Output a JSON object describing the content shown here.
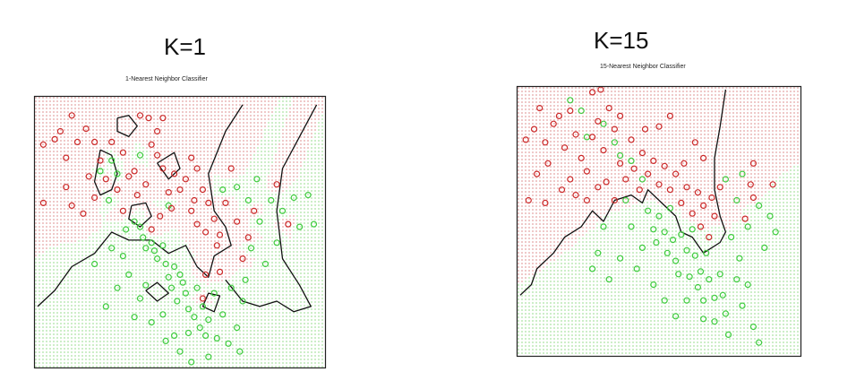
{
  "panels": [
    {
      "heading": "K=1",
      "subtitle": "1-Nearest Neighbor Classifier"
    },
    {
      "heading": "K=15",
      "subtitle": "15-Nearest Neighbor Classifier"
    }
  ],
  "colors": {
    "class_red": "#cc2a2a",
    "class_green": "#3ecc3e",
    "region_red": "#f4dcdc",
    "region_green": "#e6f6e2",
    "boundary": "#111111",
    "frame": "#222222"
  },
  "chart_data": [
    {
      "type": "scatter",
      "title": "1-Nearest Neighbor Classifier",
      "xlabel": "",
      "ylabel": "",
      "xlim": [
        0,
        1
      ],
      "ylim": [
        0,
        1
      ],
      "classes": [
        "red",
        "green"
      ],
      "red": [
        [
          0.02,
          0.83
        ],
        [
          0.06,
          0.85
        ],
        [
          0.08,
          0.88
        ],
        [
          0.1,
          0.78
        ],
        [
          0.14,
          0.84
        ],
        [
          0.12,
          0.94
        ],
        [
          0.17,
          0.89
        ],
        [
          0.2,
          0.84
        ],
        [
          0.22,
          0.77
        ],
        [
          0.24,
          0.7
        ],
        [
          0.02,
          0.61
        ],
        [
          0.1,
          0.67
        ],
        [
          0.18,
          0.71
        ],
        [
          0.2,
          0.63
        ],
        [
          0.26,
          0.84
        ],
        [
          0.3,
          0.8
        ],
        [
          0.32,
          0.71
        ],
        [
          0.34,
          0.73
        ],
        [
          0.35,
          0.64
        ],
        [
          0.36,
          0.94
        ],
        [
          0.39,
          0.93
        ],
        [
          0.4,
          0.83
        ],
        [
          0.42,
          0.88
        ],
        [
          0.44,
          0.74
        ],
        [
          0.46,
          0.65
        ],
        [
          0.47,
          0.59
        ],
        [
          0.48,
          0.72
        ],
        [
          0.5,
          0.66
        ],
        [
          0.52,
          0.7
        ],
        [
          0.54,
          0.78
        ],
        [
          0.54,
          0.58
        ],
        [
          0.55,
          0.62
        ],
        [
          0.56,
          0.74
        ],
        [
          0.56,
          0.53
        ],
        [
          0.58,
          0.66
        ],
        [
          0.59,
          0.5
        ],
        [
          0.6,
          0.61
        ],
        [
          0.62,
          0.55
        ],
        [
          0.63,
          0.45
        ],
        [
          0.64,
          0.49
        ],
        [
          0.66,
          0.61
        ],
        [
          0.68,
          0.74
        ],
        [
          0.7,
          0.54
        ],
        [
          0.72,
          0.4
        ],
        [
          0.74,
          0.48
        ],
        [
          0.76,
          0.58
        ],
        [
          0.84,
          0.68
        ],
        [
          0.88,
          0.53
        ],
        [
          0.4,
          0.51
        ],
        [
          0.43,
          0.56
        ],
        [
          0.28,
          0.66
        ],
        [
          0.3,
          0.58
        ],
        [
          0.38,
          0.68
        ],
        [
          0.42,
          0.79
        ],
        [
          0.16,
          0.57
        ],
        [
          0.44,
          0.93
        ],
        [
          0.12,
          0.6
        ],
        [
          0.59,
          0.34
        ],
        [
          0.64,
          0.35
        ],
        [
          0.58,
          0.25
        ]
      ],
      "green": [
        [
          0.22,
          0.73
        ],
        [
          0.26,
          0.77
        ],
        [
          0.28,
          0.72
        ],
        [
          0.34,
          0.54
        ],
        [
          0.36,
          0.52
        ],
        [
          0.37,
          0.48
        ],
        [
          0.38,
          0.44
        ],
        [
          0.4,
          0.46
        ],
        [
          0.41,
          0.43
        ],
        [
          0.42,
          0.4
        ],
        [
          0.44,
          0.45
        ],
        [
          0.45,
          0.38
        ],
        [
          0.46,
          0.33
        ],
        [
          0.47,
          0.29
        ],
        [
          0.48,
          0.37
        ],
        [
          0.49,
          0.24
        ],
        [
          0.5,
          0.34
        ],
        [
          0.51,
          0.31
        ],
        [
          0.52,
          0.27
        ],
        [
          0.53,
          0.21
        ],
        [
          0.55,
          0.18
        ],
        [
          0.56,
          0.29
        ],
        [
          0.57,
          0.14
        ],
        [
          0.58,
          0.22
        ],
        [
          0.59,
          0.11
        ],
        [
          0.6,
          0.17
        ],
        [
          0.62,
          0.27
        ],
        [
          0.63,
          0.1
        ],
        [
          0.65,
          0.19
        ],
        [
          0.67,
          0.08
        ],
        [
          0.68,
          0.29
        ],
        [
          0.7,
          0.14
        ],
        [
          0.71,
          0.05
        ],
        [
          0.72,
          0.24
        ],
        [
          0.73,
          0.32
        ],
        [
          0.74,
          0.62
        ],
        [
          0.75,
          0.44
        ],
        [
          0.77,
          0.7
        ],
        [
          0.78,
          0.54
        ],
        [
          0.8,
          0.38
        ],
        [
          0.82,
          0.62
        ],
        [
          0.84,
          0.46
        ],
        [
          0.86,
          0.58
        ],
        [
          0.9,
          0.63
        ],
        [
          0.92,
          0.52
        ],
        [
          0.95,
          0.64
        ],
        [
          0.97,
          0.53
        ],
        [
          0.26,
          0.44
        ],
        [
          0.3,
          0.41
        ],
        [
          0.32,
          0.34
        ],
        [
          0.28,
          0.29
        ],
        [
          0.24,
          0.22
        ],
        [
          0.36,
          0.25
        ],
        [
          0.4,
          0.16
        ],
        [
          0.44,
          0.19
        ],
        [
          0.48,
          0.11
        ],
        [
          0.5,
          0.05
        ],
        [
          0.54,
          0.01
        ],
        [
          0.38,
          0.3
        ],
        [
          0.34,
          0.18
        ],
        [
          0.2,
          0.38
        ],
        [
          0.46,
          0.6
        ],
        [
          0.36,
          0.79
        ],
        [
          0.25,
          0.62
        ],
        [
          0.31,
          0.51
        ],
        [
          0.65,
          0.66
        ],
        [
          0.7,
          0.67
        ],
        [
          0.6,
          0.03
        ],
        [
          0.45,
          0.09
        ],
        [
          0.53,
          0.12
        ]
      ],
      "boundary_paths": [
        [
          [
            0.0,
            0.22
          ],
          [
            0.06,
            0.28
          ],
          [
            0.12,
            0.37
          ],
          [
            0.2,
            0.42
          ],
          [
            0.26,
            0.5
          ],
          [
            0.32,
            0.47
          ],
          [
            0.4,
            0.47
          ],
          [
            0.46,
            0.42
          ],
          [
            0.52,
            0.45
          ],
          [
            0.56,
            0.37
          ],
          [
            0.6,
            0.33
          ],
          [
            0.62,
            0.41
          ],
          [
            0.68,
            0.45
          ],
          [
            0.66,
            0.52
          ],
          [
            0.62,
            0.58
          ],
          [
            0.6,
            0.72
          ],
          [
            0.66,
            0.88
          ],
          [
            0.72,
            0.98
          ]
        ],
        [
          [
            0.66,
            0.32
          ],
          [
            0.72,
            0.24
          ],
          [
            0.78,
            0.22
          ],
          [
            0.84,
            0.24
          ],
          [
            0.9,
            0.2
          ],
          [
            0.96,
            0.22
          ],
          [
            0.92,
            0.3
          ],
          [
            0.86,
            0.4
          ],
          [
            0.84,
            0.58
          ],
          [
            0.86,
            0.74
          ],
          [
            0.92,
            0.86
          ],
          [
            0.98,
            0.98
          ]
        ],
        [
          [
            0.22,
            0.81
          ],
          [
            0.26,
            0.79
          ],
          [
            0.28,
            0.72
          ],
          [
            0.26,
            0.66
          ],
          [
            0.22,
            0.64
          ],
          [
            0.2,
            0.69
          ],
          [
            0.22,
            0.81
          ]
        ],
        [
          [
            0.28,
            0.93
          ],
          [
            0.32,
            0.94
          ],
          [
            0.35,
            0.9
          ],
          [
            0.32,
            0.86
          ],
          [
            0.28,
            0.88
          ],
          [
            0.28,
            0.93
          ]
        ],
        [
          [
            0.33,
            0.6
          ],
          [
            0.38,
            0.61
          ],
          [
            0.4,
            0.56
          ],
          [
            0.36,
            0.52
          ],
          [
            0.32,
            0.55
          ],
          [
            0.33,
            0.6
          ]
        ],
        [
          [
            0.42,
            0.76
          ],
          [
            0.48,
            0.8
          ],
          [
            0.5,
            0.74
          ],
          [
            0.46,
            0.7
          ],
          [
            0.42,
            0.76
          ]
        ],
        [
          [
            0.38,
            0.28
          ],
          [
            0.42,
            0.31
          ],
          [
            0.46,
            0.27
          ],
          [
            0.42,
            0.24
          ],
          [
            0.38,
            0.28
          ]
        ],
        [
          [
            0.58,
            0.22
          ],
          [
            0.6,
            0.27
          ],
          [
            0.64,
            0.26
          ],
          [
            0.62,
            0.2
          ],
          [
            0.58,
            0.22
          ]
        ]
      ]
    },
    {
      "type": "scatter",
      "title": "15-Nearest Neighbor Classifier",
      "xlabel": "",
      "ylabel": "",
      "xlim": [
        0,
        1
      ],
      "ylim": [
        0,
        1
      ],
      "classes": [
        "red",
        "green"
      ],
      "red": [
        [
          0.02,
          0.81
        ],
        [
          0.05,
          0.85
        ],
        [
          0.07,
          0.93
        ],
        [
          0.09,
          0.8
        ],
        [
          0.12,
          0.87
        ],
        [
          0.14,
          0.9
        ],
        [
          0.16,
          0.78
        ],
        [
          0.18,
          0.92
        ],
        [
          0.2,
          0.83
        ],
        [
          0.22,
          0.74
        ],
        [
          0.24,
          0.69
        ],
        [
          0.26,
          0.82
        ],
        [
          0.28,
          0.88
        ],
        [
          0.3,
          0.77
        ],
        [
          0.32,
          0.93
        ],
        [
          0.34,
          0.85
        ],
        [
          0.36,
          0.72
        ],
        [
          0.38,
          0.66
        ],
        [
          0.4,
          0.81
        ],
        [
          0.41,
          0.7
        ],
        [
          0.43,
          0.62
        ],
        [
          0.44,
          0.76
        ],
        [
          0.46,
          0.68
        ],
        [
          0.48,
          0.73
        ],
        [
          0.5,
          0.64
        ],
        [
          0.52,
          0.71
        ],
        [
          0.54,
          0.62
        ],
        [
          0.56,
          0.68
        ],
        [
          0.58,
          0.57
        ],
        [
          0.59,
          0.72
        ],
        [
          0.6,
          0.63
        ],
        [
          0.62,
          0.53
        ],
        [
          0.64,
          0.61
        ],
        [
          0.65,
          0.48
        ],
        [
          0.66,
          0.56
        ],
        [
          0.68,
          0.44
        ],
        [
          0.7,
          0.52
        ],
        [
          0.72,
          0.63
        ],
        [
          0.63,
          0.8
        ],
        [
          0.66,
          0.74
        ],
        [
          0.69,
          0.59
        ],
        [
          0.06,
          0.68
        ],
        [
          0.1,
          0.72
        ],
        [
          0.15,
          0.62
        ],
        [
          0.18,
          0.66
        ],
        [
          0.2,
          0.6
        ],
        [
          0.24,
          0.58
        ],
        [
          0.28,
          0.63
        ],
        [
          0.31,
          0.65
        ],
        [
          0.34,
          0.58
        ],
        [
          0.09,
          0.57
        ],
        [
          0.03,
          0.58
        ],
        [
          0.26,
          0.99
        ],
        [
          0.29,
          1.0
        ],
        [
          0.45,
          0.85
        ],
        [
          0.84,
          0.72
        ],
        [
          0.83,
          0.64
        ],
        [
          0.84,
          0.59
        ],
        [
          0.81,
          0.51
        ],
        [
          0.91,
          0.64
        ],
        [
          0.5,
          0.86
        ],
        [
          0.54,
          0.9
        ],
        [
          0.36,
          0.9
        ]
      ],
      "green": [
        [
          0.18,
          0.96
        ],
        [
          0.22,
          0.92
        ],
        [
          0.24,
          0.82
        ],
        [
          0.3,
          0.87
        ],
        [
          0.34,
          0.8
        ],
        [
          0.36,
          0.75
        ],
        [
          0.4,
          0.73
        ],
        [
          0.44,
          0.66
        ],
        [
          0.46,
          0.54
        ],
        [
          0.48,
          0.47
        ],
        [
          0.49,
          0.42
        ],
        [
          0.5,
          0.52
        ],
        [
          0.52,
          0.46
        ],
        [
          0.53,
          0.38
        ],
        [
          0.54,
          0.55
        ],
        [
          0.55,
          0.43
        ],
        [
          0.56,
          0.35
        ],
        [
          0.57,
          0.3
        ],
        [
          0.58,
          0.45
        ],
        [
          0.6,
          0.39
        ],
        [
          0.61,
          0.29
        ],
        [
          0.62,
          0.47
        ],
        [
          0.63,
          0.37
        ],
        [
          0.64,
          0.25
        ],
        [
          0.65,
          0.31
        ],
        [
          0.66,
          0.2
        ],
        [
          0.67,
          0.38
        ],
        [
          0.68,
          0.28
        ],
        [
          0.7,
          0.21
        ],
        [
          0.7,
          0.12
        ],
        [
          0.72,
          0.3
        ],
        [
          0.73,
          0.22
        ],
        [
          0.74,
          0.15
        ],
        [
          0.75,
          0.07
        ],
        [
          0.76,
          0.44
        ],
        [
          0.78,
          0.28
        ],
        [
          0.79,
          0.36
        ],
        [
          0.8,
          0.18
        ],
        [
          0.82,
          0.26
        ],
        [
          0.84,
          0.1
        ],
        [
          0.86,
          0.04
        ],
        [
          0.74,
          0.66
        ],
        [
          0.78,
          0.58
        ],
        [
          0.82,
          0.48
        ],
        [
          0.86,
          0.56
        ],
        [
          0.88,
          0.4
        ],
        [
          0.9,
          0.52
        ],
        [
          0.92,
          0.46
        ],
        [
          0.8,
          0.68
        ],
        [
          0.38,
          0.58
        ],
        [
          0.4,
          0.48
        ],
        [
          0.36,
          0.36
        ],
        [
          0.42,
          0.32
        ],
        [
          0.44,
          0.4
        ],
        [
          0.32,
          0.28
        ],
        [
          0.28,
          0.38
        ],
        [
          0.3,
          0.48
        ],
        [
          0.26,
          0.32
        ],
        [
          0.52,
          0.2
        ],
        [
          0.56,
          0.14
        ],
        [
          0.48,
          0.26
        ],
        [
          0.6,
          0.2
        ],
        [
          0.66,
          0.13
        ]
      ],
      "boundary_paths": [
        [
          [
            0.0,
            0.22
          ],
          [
            0.04,
            0.26
          ],
          [
            0.06,
            0.32
          ],
          [
            0.12,
            0.38
          ],
          [
            0.16,
            0.44
          ],
          [
            0.22,
            0.48
          ],
          [
            0.26,
            0.54
          ],
          [
            0.3,
            0.5
          ],
          [
            0.34,
            0.58
          ],
          [
            0.4,
            0.6
          ],
          [
            0.44,
            0.57
          ],
          [
            0.46,
            0.62
          ],
          [
            0.52,
            0.56
          ],
          [
            0.56,
            0.52
          ],
          [
            0.58,
            0.46
          ],
          [
            0.62,
            0.44
          ],
          [
            0.66,
            0.38
          ],
          [
            0.72,
            0.42
          ],
          [
            0.74,
            0.46
          ],
          [
            0.72,
            0.52
          ],
          [
            0.7,
            0.62
          ],
          [
            0.7,
            0.74
          ],
          [
            0.72,
            0.86
          ],
          [
            0.74,
            1.0
          ]
        ]
      ]
    }
  ]
}
